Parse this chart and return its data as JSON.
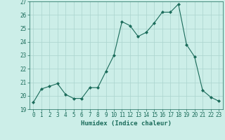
{
  "x": [
    0,
    1,
    2,
    3,
    4,
    5,
    6,
    7,
    8,
    9,
    10,
    11,
    12,
    13,
    14,
    15,
    16,
    17,
    18,
    19,
    20,
    21,
    22,
    23
  ],
  "y": [
    19.5,
    20.5,
    20.7,
    20.9,
    20.1,
    19.8,
    19.8,
    20.6,
    20.6,
    21.8,
    23.0,
    25.5,
    25.2,
    24.4,
    24.7,
    25.4,
    26.2,
    26.2,
    26.8,
    23.8,
    22.9,
    20.4,
    19.9,
    19.6
  ],
  "xlabel": "Humidex (Indice chaleur)",
  "ylim": [
    19,
    27
  ],
  "xlim": [
    -0.5,
    23.5
  ],
  "yticks": [
    19,
    20,
    21,
    22,
    23,
    24,
    25,
    26,
    27
  ],
  "xtick_labels": [
    "0",
    "1",
    "2",
    "3",
    "4",
    "5",
    "6",
    "7",
    "8",
    "9",
    "10",
    "11",
    "12",
    "13",
    "14",
    "15",
    "16",
    "17",
    "18",
    "19",
    "20",
    "21",
    "22",
    "23"
  ],
  "line_color": "#1a6b5a",
  "marker": "D",
  "marker_size": 2,
  "bg_color": "#cceee8",
  "grid_color": "#aad4ce",
  "label_fontsize": 6.5,
  "tick_fontsize": 5.5
}
